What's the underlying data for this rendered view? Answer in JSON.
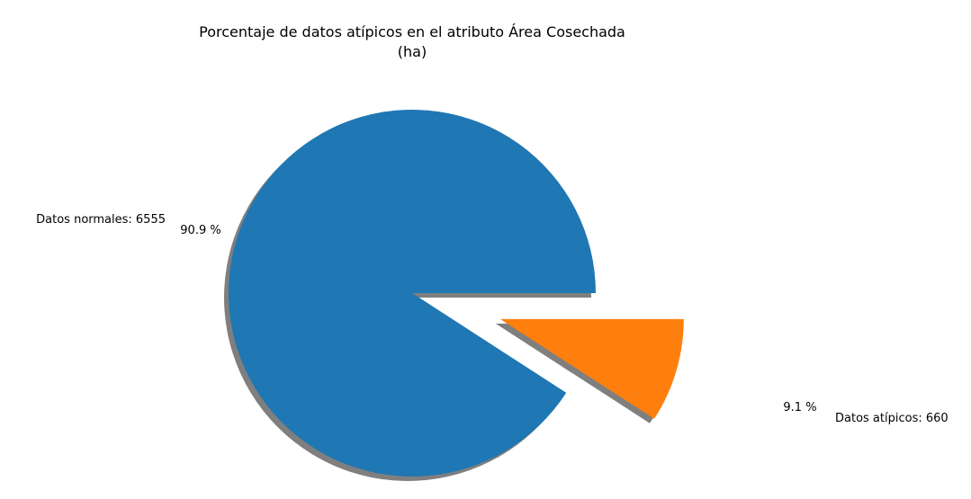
{
  "chart_data": {
    "type": "pie",
    "title_line1": "Porcentaje de datos atípicos en el atributo Área Cosechada",
    "title_line2": "(ha)",
    "slices": [
      {
        "label": "Datos normales: 6555",
        "value": 6555,
        "pct_label": "90.9 %",
        "color": "#1f77b4",
        "exploded": false
      },
      {
        "label": "Datos atípicos: 660",
        "value": 660,
        "pct_label": "9.1 %",
        "color": "#ff7f0e",
        "exploded": true
      }
    ],
    "start_angle_deg": 0,
    "shadow": true,
    "legend": "none"
  }
}
